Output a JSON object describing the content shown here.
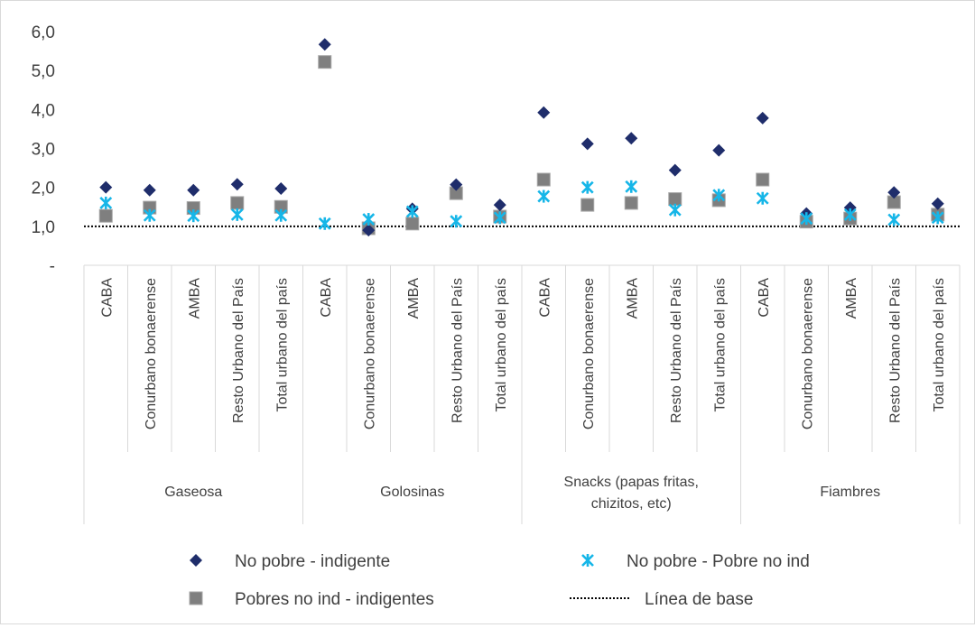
{
  "chart_data": {
    "type": "scatter",
    "y_tick_labels": [
      "-",
      "1,0",
      "2,0",
      "3,0",
      "4,0",
      "5,0",
      "6,0"
    ],
    "ylim": [
      0,
      6
    ],
    "groups": [
      {
        "label": "Gaseosa",
        "categories": [
          "CABA",
          "Conurbano bonaerense",
          "AMBA",
          "Resto Urbano del País",
          "Total urbano del país"
        ]
      },
      {
        "label": "Golosinas",
        "categories": [
          "CABA",
          "Conurbano bonaerense",
          "AMBA",
          "Resto Urbano del País",
          "Total urbano del país"
        ]
      },
      {
        "label": "Snacks (papas fritas,",
        "label_line2": "chizitos, etc)",
        "categories": [
          "CABA",
          "Conurbano bonaerense",
          "AMBA",
          "Resto Urbano del País",
          "Total urbano del país"
        ]
      },
      {
        "label": "Fiambres",
        "categories": [
          "CABA",
          "Conurbano bonaerense",
          "AMBA",
          "Resto Urbano del País",
          "Total urbano del país"
        ]
      }
    ],
    "series": [
      {
        "name": "No pobre - indigente",
        "marker": "diamond",
        "color": "#1f2d6b",
        "values": [
          2.0,
          1.93,
          1.93,
          2.08,
          1.97,
          5.67,
          0.9,
          1.45,
          2.07,
          1.55,
          3.92,
          3.12,
          3.26,
          2.44,
          2.95,
          3.78,
          1.33,
          1.48,
          1.87,
          1.58
        ]
      },
      {
        "name": "No pobre - Pobre no ind",
        "marker": "asterisk",
        "color": "#16b6e8",
        "values": [
          1.6,
          1.28,
          1.27,
          1.3,
          1.28,
          1.07,
          1.18,
          1.38,
          1.13,
          1.22,
          1.77,
          2.0,
          2.02,
          1.42,
          1.8,
          1.72,
          1.2,
          1.3,
          1.17,
          1.22
        ]
      },
      {
        "name": "Pobres no ind - indigentes",
        "marker": "square",
        "color": "#7f7f7f",
        "values": [
          1.27,
          1.48,
          1.47,
          1.6,
          1.5,
          5.22,
          0.95,
          1.07,
          1.85,
          1.25,
          2.2,
          1.55,
          1.6,
          1.7,
          1.67,
          2.2,
          1.12,
          1.2,
          1.62,
          1.3
        ]
      },
      {
        "name": "Línea de base",
        "marker": "dotted-line",
        "color": "#000000",
        "value": 1.0
      }
    ],
    "grid": false,
    "legend_position": "bottom"
  }
}
